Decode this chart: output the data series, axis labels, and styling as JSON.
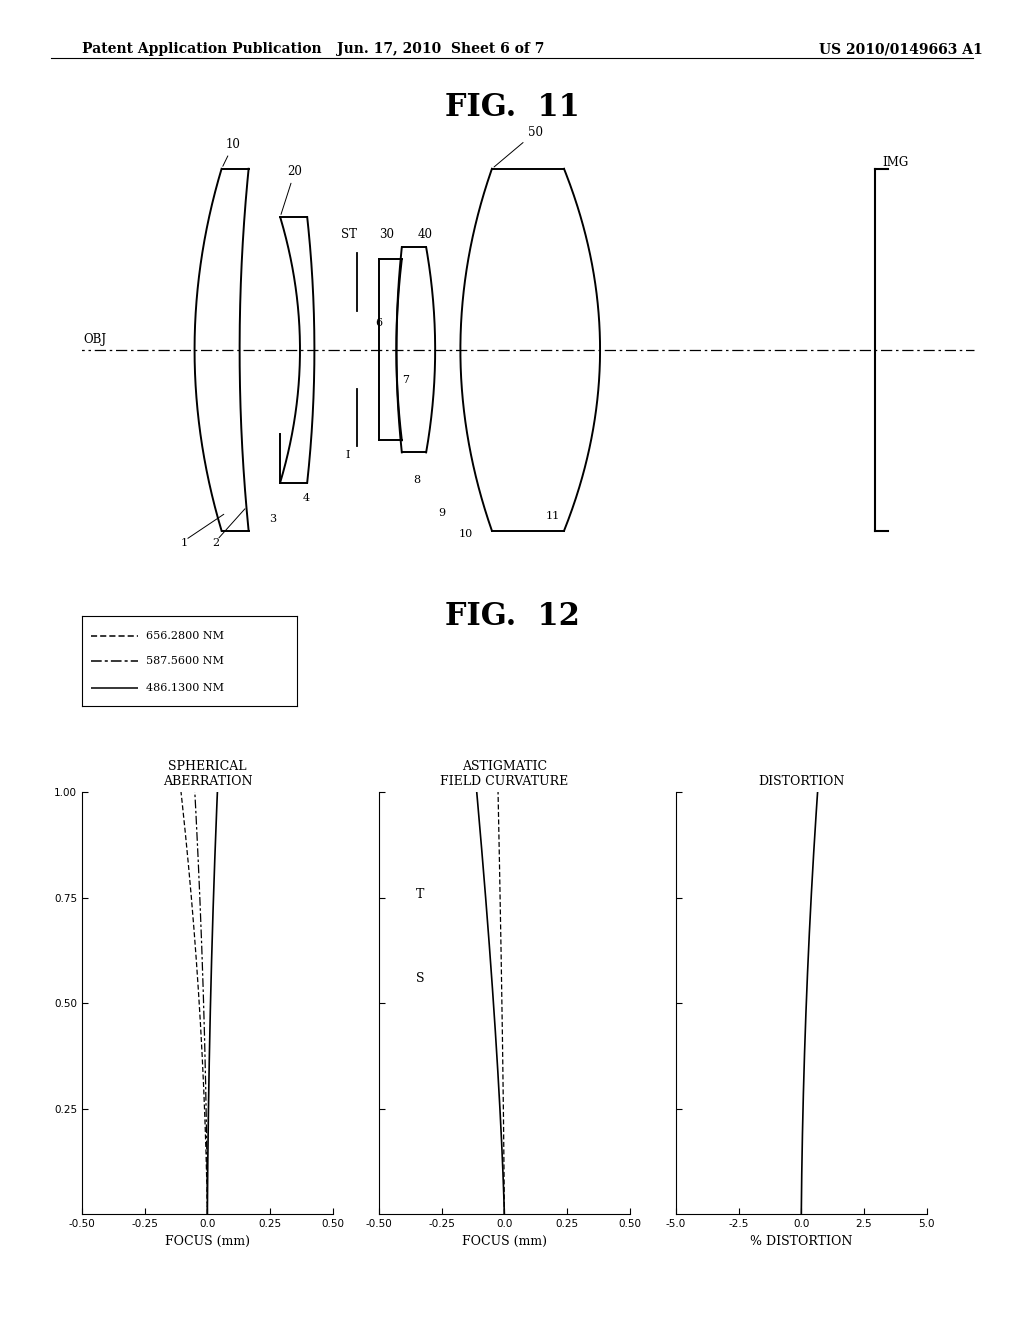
{
  "header_left": "Patent Application Publication",
  "header_center": "Jun. 17, 2010  Sheet 6 of 7",
  "header_right": "US 2010/0149663 A1",
  "fig11_title": "FIG.  11",
  "fig12_title": "FIG.  12",
  "background_color": "#ffffff",
  "text_color": "#000000",
  "legend_entries": [
    "656.2800 NM",
    "587.5600 NM",
    "486.1300 NM"
  ],
  "sa_title1": "SPHERICAL",
  "sa_title2": "ABERRATION",
  "afc_title1": "ASTIGMATIC",
  "afc_title2": "FIELD CURVATURE",
  "dist_title": "DISTORTION",
  "dist_xlabel": "% DISTORTION",
  "focus_xlabel": "FOCUS (mm)"
}
